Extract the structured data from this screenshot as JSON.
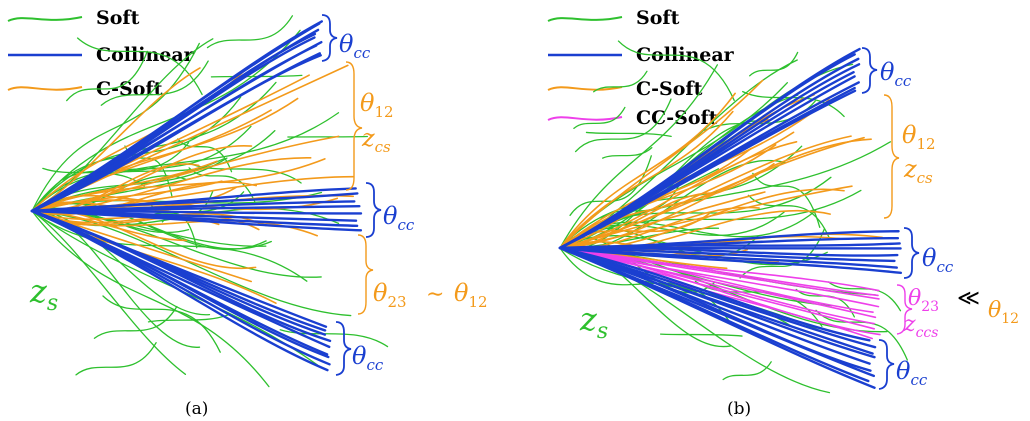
{
  "colors": {
    "soft": "#2ec02e",
    "collinear": "#1a3fd0",
    "c_soft": "#f39a1b",
    "cc_soft": "#ee40ea",
    "text": "#000000"
  },
  "legend_labels": {
    "soft": "Soft",
    "collinear": "Collinear",
    "c_soft": "C-Soft",
    "cc_soft": "CC-Soft"
  },
  "panel_a": {
    "caption": "(a)",
    "legend": [
      "soft",
      "collinear",
      "c_soft"
    ],
    "annotations": {
      "theta_cc_top": "θ",
      "theta_cc_top_sub": "cc",
      "theta_12": "θ",
      "theta_12_sub": "12",
      "z_cs": "z",
      "z_cs_sub": "cs",
      "theta_cc_mid": "θ",
      "theta_cc_mid_sub": "cc",
      "theta_23": "θ",
      "theta_23_sub": "23",
      "relation": "∼",
      "theta_12_rhs": "θ",
      "theta_12_rhs_sub": "12",
      "z_s": "z",
      "z_s_sub": "s",
      "theta_cc_bot": "θ",
      "theta_cc_bot_sub": "cc"
    }
  },
  "panel_b": {
    "caption": "(b)",
    "legend": [
      "soft",
      "collinear",
      "c_soft",
      "cc_soft"
    ],
    "annotations": {
      "theta_cc_top": "θ",
      "theta_cc_top_sub": "cc",
      "theta_12": "θ",
      "theta_12_sub": "12",
      "z_cs": "z",
      "z_cs_sub": "cs",
      "theta_cc_mid": "θ",
      "theta_cc_mid_sub": "cc",
      "theta_23": "θ",
      "theta_23_sub": "23",
      "relation": "≪",
      "theta_12_rhs": "θ",
      "theta_12_rhs_sub": "12",
      "z_ccs": "z",
      "z_ccs_sub": "ccs",
      "z_s": "z",
      "z_s_sub": "s",
      "theta_cc_bot": "θ",
      "theta_cc_bot_sub": "cc"
    }
  }
}
